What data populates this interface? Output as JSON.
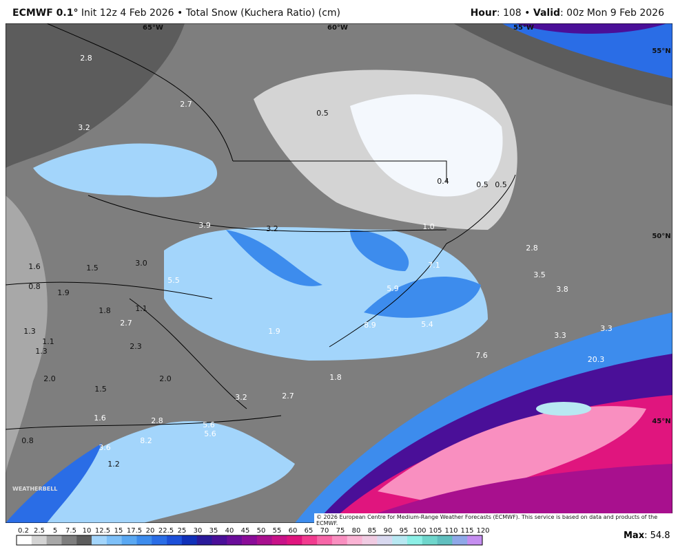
{
  "header": {
    "model": "ECMWF 0.1°",
    "description": "Init 12z 4 Feb 2026 • Total Snow (Kuchera Ratio) (cm)",
    "hour_label": "Hour",
    "hour_text": ": 108 •",
    "valid_label": "Valid",
    "valid_text": ": 00z Mon 9 Feb 2026"
  },
  "map": {
    "longitudes": [
      "65°W",
      "60°W",
      "55°W"
    ],
    "latitudes": [
      "55°N",
      "50°N",
      "45°N"
    ],
    "point_labels": [
      "2.8",
      "2.7",
      "3.2",
      "0.5",
      "0.4",
      "0.5",
      "0.5",
      "3.9",
      "3.2",
      "1.0",
      "2.8",
      "3.5",
      "1.6",
      "1.5",
      "3.0",
      "7.1",
      "0.8",
      "1.9",
      "5.5",
      "5.9",
      "3.8",
      "1.8",
      "1.1",
      "2.7",
      "8.9",
      "5.4",
      "1.3",
      "1.9",
      "1.1",
      "3.3",
      "3.3",
      "1.3",
      "2.3",
      "7.6",
      "20.3",
      "2.0",
      "2.0",
      "1.8",
      "1.5",
      "3.2",
      "2.7",
      "1.6",
      "2.8",
      "5.6",
      "5.6",
      "0.8",
      "8.2",
      "3.6",
      "1.2"
    ],
    "copyright": "© 2026 European Centre for Medium-Range Weather Forecasts (ECMWF). This service is based on data and products of the ECMWF.",
    "logo": "WEATHERBELL"
  },
  "colorbar": {
    "levels": [
      0.2,
      2.5,
      5,
      7.5,
      10,
      12.5,
      15,
      17.5,
      20,
      22.5,
      25,
      30,
      35,
      40,
      45,
      50,
      55,
      60,
      65,
      70,
      75,
      80,
      85,
      90,
      95,
      100,
      105,
      110,
      115,
      120
    ],
    "colors": [
      "#ffffff",
      "#d4d4d4",
      "#a8a8a8",
      "#7e7e7e",
      "#5c5c5c",
      "#a3d5fb",
      "#7ec0f8",
      "#5aa8f2",
      "#3d8ced",
      "#2a6de6",
      "#1c4fd8",
      "#1030b8",
      "#2a1a9a",
      "#4a0f98",
      "#6a0d9a",
      "#8a0c98",
      "#a8108e",
      "#c81288",
      "#e0157e",
      "#f23b8f",
      "#f766a8",
      "#f98fc0",
      "#fab3d4",
      "#f0cbe2",
      "#d8d8ef",
      "#b8e8f2",
      "#8cefe6",
      "#6fd6cc",
      "#60bfbf",
      "#8fa8e8",
      "#c58ef0"
    ]
  },
  "max": {
    "label": "Max",
    "value": ": 54.8"
  }
}
